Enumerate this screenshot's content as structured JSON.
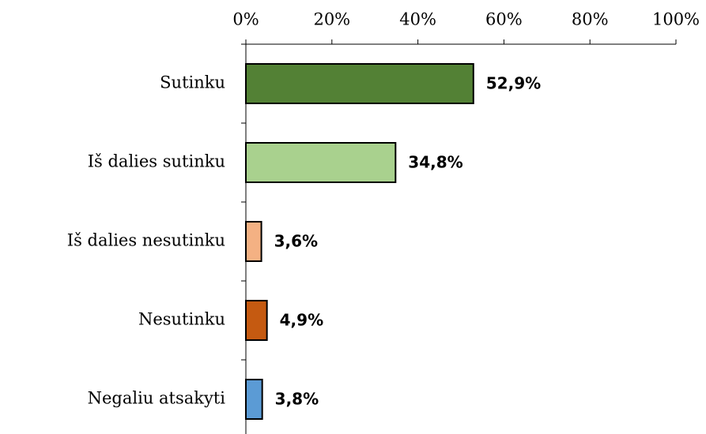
{
  "chart_data": {
    "type": "bar",
    "orientation": "horizontal",
    "categories": [
      "Sutinku",
      "Iš dalies sutinku",
      "Iš dalies nesutinku",
      "Nesutinku",
      "Negaliu atsakyti"
    ],
    "values": [
      52.9,
      34.8,
      3.6,
      4.9,
      3.8
    ],
    "value_labels": [
      "52,9%",
      "34,8%",
      "3,6%",
      "4,9%",
      "3,8%"
    ],
    "colors": [
      "#538135",
      "#a9d18e",
      "#f4b183",
      "#c55a11",
      "#5b9bd5"
    ],
    "xlim": [
      0,
      100
    ],
    "xticks": [
      {
        "value": 0,
        "label": "0%"
      },
      {
        "value": 20,
        "label": "20%"
      },
      {
        "value": 40,
        "label": "40%"
      },
      {
        "value": 60,
        "label": "60%"
      },
      {
        "value": 80,
        "label": "80%"
      },
      {
        "value": 100,
        "label": "100%"
      }
    ],
    "grid": false
  }
}
